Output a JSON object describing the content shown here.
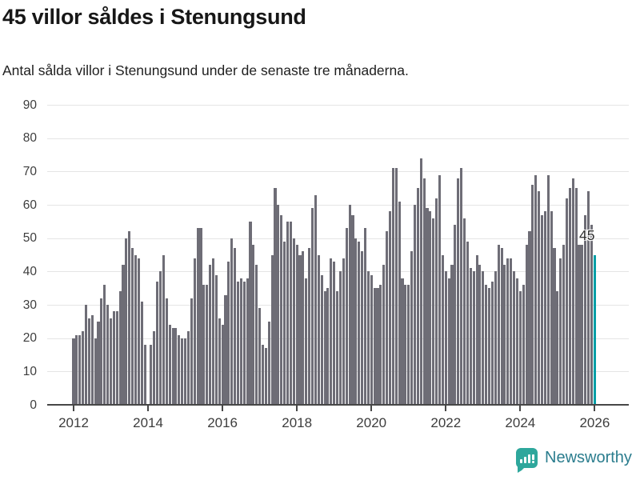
{
  "title": "45 villor såldes i Stenungsund",
  "subtitle": "Antal sålda villor i Stenungsund under de senaste tre månaderna.",
  "annotation": {
    "last_value_label": "45"
  },
  "branding": {
    "logo_text": "Newsworthy",
    "logo_icon": "bar-chart-speech-bubble-icon"
  },
  "colors": {
    "bar": "#6e6d76",
    "highlight": "#009ea6",
    "grid": "#e4e4e4",
    "axis": "#474747",
    "title_text": "#171717",
    "tick_text": "#3d3d3d",
    "logo_mark": "#2ea79c",
    "logo_text": "#2b7d8e"
  },
  "chart_data": {
    "type": "bar",
    "title": "45 villor såldes i Stenungsund",
    "subtitle": "Antal sålda villor i Stenungsund under de senaste tre månaderna.",
    "xlabel": "",
    "ylabel": "",
    "ylim": [
      0,
      90
    ],
    "y_ticks": [
      0,
      10,
      20,
      30,
      40,
      50,
      60,
      70,
      80,
      90
    ],
    "x_tick_labels": [
      "2012",
      "2014",
      "2016",
      "2018",
      "2020",
      "2022",
      "2024",
      "2026"
    ],
    "grid": "horizontal",
    "legend": "none",
    "frequency": "monthly",
    "start_month": "2012-01",
    "end_month": "2026-01",
    "highlight_last_bar": true,
    "last_bar_label": "45",
    "values": [
      20,
      21,
      21,
      22,
      30,
      26,
      27,
      20,
      25,
      32,
      36,
      30,
      26,
      28,
      28,
      34,
      42,
      50,
      52,
      47,
      45,
      44,
      31,
      18,
      0,
      18,
      22,
      37,
      40,
      45,
      32,
      24,
      23,
      23,
      21,
      20,
      20,
      22,
      32,
      44,
      53,
      53,
      36,
      36,
      42,
      44,
      39,
      26,
      24,
      33,
      43,
      50,
      47,
      37,
      38,
      37,
      38,
      55,
      48,
      42,
      29,
      18,
      17,
      25,
      45,
      65,
      60,
      57,
      49,
      55,
      55,
      50,
      48,
      45,
      46,
      38,
      47,
      59,
      63,
      45,
      39,
      34,
      35,
      44,
      43,
      34,
      40,
      44,
      53,
      60,
      57,
      50,
      49,
      46,
      53,
      40,
      39,
      35,
      35,
      36,
      42,
      52,
      58,
      71,
      71,
      61,
      38,
      36,
      36,
      46,
      60,
      65,
      74,
      68,
      59,
      58,
      56,
      62,
      69,
      45,
      40,
      38,
      42,
      54,
      68,
      71,
      56,
      49,
      41,
      40,
      45,
      42,
      40,
      36,
      35,
      37,
      40,
      48,
      47,
      42,
      44,
      44,
      40,
      38,
      34,
      36,
      48,
      52,
      66,
      69,
      64,
      57,
      58,
      69,
      58,
      47,
      34,
      44,
      48,
      62,
      65,
      68,
      65,
      48,
      48,
      57,
      64,
      54,
      45
    ]
  }
}
